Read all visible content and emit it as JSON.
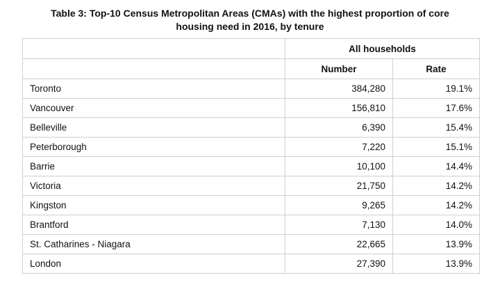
{
  "title": {
    "line1": "Table 3: Top-10 Census Metropolitan Areas (CMAs) with the highest proportion of core",
    "line2": "housing need in 2016, by tenure"
  },
  "table": {
    "group_header": "All households",
    "columns": [
      "Number",
      "Rate"
    ],
    "rows": [
      {
        "cma": "Toronto",
        "number": "384,280",
        "rate": "19.1%"
      },
      {
        "cma": "Vancouver",
        "number": "156,810",
        "rate": "17.6%"
      },
      {
        "cma": "Belleville",
        "number": "6,390",
        "rate": "15.4%"
      },
      {
        "cma": "Peterborough",
        "number": "7,220",
        "rate": "15.1%"
      },
      {
        "cma": "Barrie",
        "number": "10,100",
        "rate": "14.4%"
      },
      {
        "cma": "Victoria",
        "number": "21,750",
        "rate": "14.2%"
      },
      {
        "cma": "Kingston",
        "number": "9,265",
        "rate": "14.2%"
      },
      {
        "cma": "Brantford",
        "number": "7,130",
        "rate": "14.0%"
      },
      {
        "cma": "St. Catharines - Niagara",
        "number": "22,665",
        "rate": "13.9%"
      },
      {
        "cma": "London",
        "number": "27,390",
        "rate": "13.9%"
      }
    ]
  }
}
